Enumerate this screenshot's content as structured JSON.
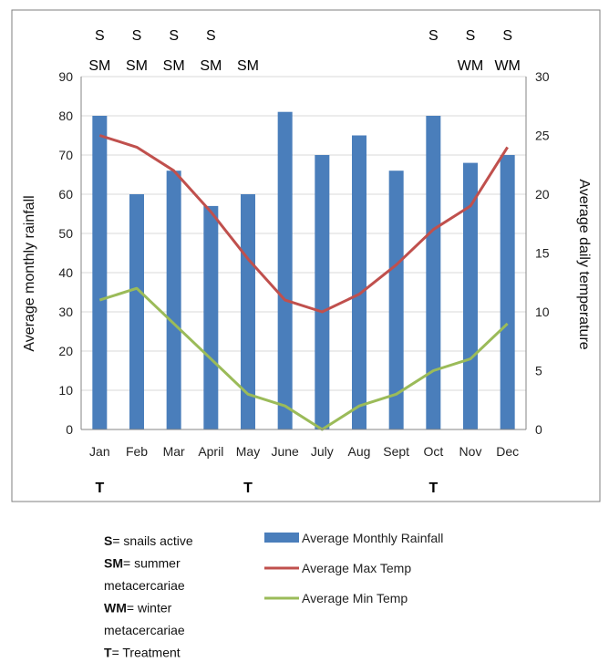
{
  "chart_data": {
    "type": "bar",
    "categories": [
      "Jan",
      "Feb",
      "Mar",
      "April",
      "May",
      "June",
      "July",
      "Aug",
      "Sept",
      "Oct",
      "Nov",
      "Dec"
    ],
    "series": [
      {
        "name": "Average Monthly Rainfall",
        "kind": "bar",
        "axis": "left",
        "color": "#4a7ebb",
        "values": [
          80,
          60,
          66,
          57,
          60,
          81,
          70,
          75,
          66,
          80,
          68,
          70
        ]
      },
      {
        "name": "Average Max Temp",
        "kind": "line",
        "axis": "right",
        "color": "#c0504d",
        "values": [
          25,
          24,
          22,
          18.5,
          14.5,
          11,
          10,
          11.5,
          14,
          17,
          19,
          24
        ]
      },
      {
        "name": "Average Min Temp",
        "kind": "line",
        "axis": "right",
        "color": "#9bbb59",
        "values": [
          11,
          12,
          9,
          6,
          3,
          2,
          0,
          2,
          3,
          5,
          6,
          9
        ]
      }
    ],
    "ylabel": "Average monthly rainfall",
    "y2label": "Average daily temperature",
    "ylim": [
      0,
      90
    ],
    "yticks": [
      "0",
      "10",
      "20",
      "30",
      "40",
      "50",
      "60",
      "70",
      "80",
      "90"
    ],
    "y2lim": [
      0,
      30
    ],
    "y2ticks": [
      "0",
      "5",
      "10",
      "15",
      "20",
      "25",
      "30"
    ],
    "grid": true,
    "top_annotations": [
      {
        "month": 0,
        "s": "S",
        "m": "SM"
      },
      {
        "month": 1,
        "s": "S",
        "m": "SM"
      },
      {
        "month": 2,
        "s": "S",
        "m": "SM"
      },
      {
        "month": 3,
        "s": "S",
        "m": "SM"
      },
      {
        "month": 4,
        "s": "",
        "m": "SM"
      },
      {
        "month": 9,
        "s": "S",
        "m": ""
      },
      {
        "month": 10,
        "s": "S",
        "m": "WM"
      },
      {
        "month": 11,
        "s": "S",
        "m": "WM"
      }
    ],
    "treatment_marks": [
      {
        "month": 0,
        "label": "T"
      },
      {
        "month": 4,
        "label": "T"
      },
      {
        "month": 9,
        "label": "T"
      }
    ],
    "legend": [
      {
        "label": "Average Monthly Rainfall",
        "type": "bar",
        "color": "#4a7ebb"
      },
      {
        "label": "Average Max Temp",
        "type": "line",
        "color": "#c0504d"
      },
      {
        "label": "Average Min Temp",
        "type": "line",
        "color": "#9bbb59"
      }
    ]
  },
  "key": [
    {
      "bold": "S",
      "rest": "= snails active"
    },
    {
      "bold": "SM",
      "rest": "= summer"
    },
    {
      "bold": "",
      "rest": "metacercariae"
    },
    {
      "bold": "WM",
      "rest": "= winter"
    },
    {
      "bold": "",
      "rest": "metacercariae"
    },
    {
      "bold": "T",
      "rest": "= Treatment"
    }
  ]
}
